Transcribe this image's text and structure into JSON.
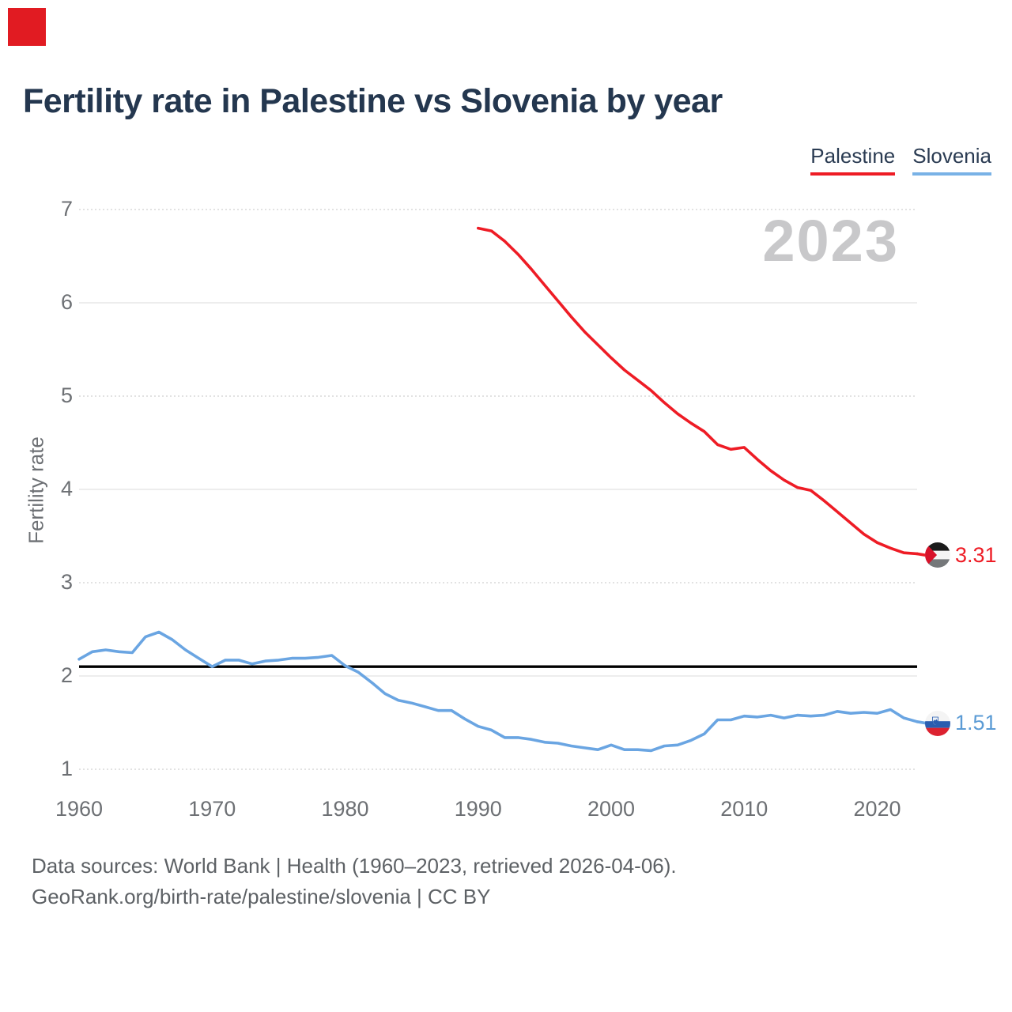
{
  "brand_mark": {
    "color": "#e11b22"
  },
  "title": "Fertility rate in Palestine vs Slovenia by year",
  "legend": {
    "items": [
      {
        "label": "Palestine",
        "color": "#ee1c25"
      },
      {
        "label": "Slovenia",
        "color": "#79b2e6"
      }
    ]
  },
  "watermark": {
    "year": "2023"
  },
  "y_axis": {
    "label": "Fertility rate"
  },
  "end_markers": [
    {
      "series": "Palestine",
      "flag": "palestine-flag-icon",
      "value": "3.31",
      "color": "#ee1c25"
    },
    {
      "series": "Slovenia",
      "flag": "slovenia-flag-icon",
      "value": "1.51",
      "color": "#5b9bd5"
    }
  ],
  "footer": {
    "line1": "Data sources: World Bank | Health (1960–2023, retrieved 2026-04-06).",
    "line2": "GeoRank.org/birth-rate/palestine/slovenia | CC BY"
  },
  "chart_data": {
    "type": "line",
    "title": "Fertility rate in Palestine vs Slovenia by year",
    "xlabel": "",
    "ylabel": "Fertility rate",
    "xlim": [
      1960,
      2023
    ],
    "ylim": [
      1,
      7
    ],
    "x_ticks": [
      1960,
      1970,
      1980,
      1990,
      2000,
      2010,
      2020
    ],
    "y_ticks": [
      1,
      2,
      3,
      4,
      5,
      6,
      7
    ],
    "grid": "horizontal",
    "legend_position": "top-right",
    "reference_line": {
      "y": 2.1,
      "color": "#000000"
    },
    "series": [
      {
        "name": "Palestine",
        "color": "#ee1c25",
        "year_start": 1990,
        "year_end": 2023,
        "end_label": "3.31",
        "values": [
          6.8,
          6.77,
          6.66,
          6.52,
          6.36,
          6.19,
          6.02,
          5.85,
          5.69,
          5.55,
          5.41,
          5.28,
          5.17,
          5.06,
          4.93,
          4.81,
          4.71,
          4.62,
          4.48,
          4.43,
          4.45,
          4.32,
          4.2,
          4.1,
          4.02,
          3.99,
          3.88,
          3.76,
          3.64,
          3.52,
          3.43,
          3.37,
          3.32,
          3.31
        ]
      },
      {
        "name": "Slovenia",
        "color": "#6aa5e2",
        "year_start": 1960,
        "year_end": 2023,
        "end_label": "1.51",
        "values": [
          2.18,
          2.26,
          2.28,
          2.26,
          2.25,
          2.42,
          2.47,
          2.39,
          2.28,
          2.19,
          2.1,
          2.17,
          2.17,
          2.13,
          2.16,
          2.17,
          2.19,
          2.19,
          2.2,
          2.22,
          2.11,
          2.04,
          1.93,
          1.81,
          1.74,
          1.71,
          1.67,
          1.63,
          1.63,
          1.54,
          1.46,
          1.42,
          1.34,
          1.34,
          1.32,
          1.29,
          1.28,
          1.25,
          1.23,
          1.21,
          1.26,
          1.21,
          1.21,
          1.2,
          1.25,
          1.26,
          1.31,
          1.38,
          1.53,
          1.53,
          1.57,
          1.56,
          1.58,
          1.55,
          1.58,
          1.57,
          1.58,
          1.62,
          1.6,
          1.61,
          1.6,
          1.64,
          1.55,
          1.51
        ]
      }
    ]
  }
}
